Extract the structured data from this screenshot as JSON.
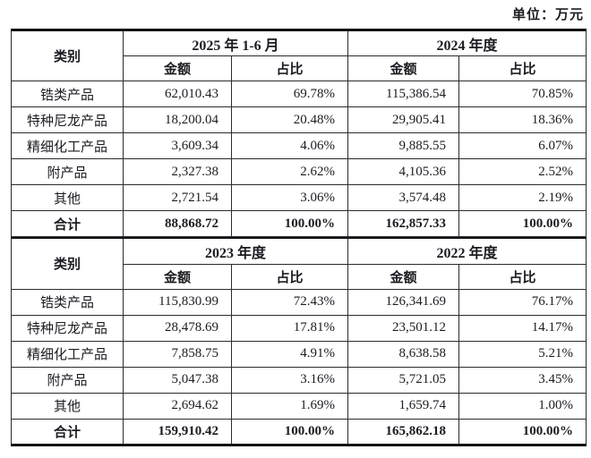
{
  "unit_label": "单位：万元",
  "colors": {
    "text": "#1b1b22",
    "border_thin": "#2b2b31",
    "border_thick": "#0c0c10",
    "background": "#ffffff"
  },
  "tables": [
    {
      "category_header": "类别",
      "period1": "2025 年 1-6 月",
      "period2": "2024 年度",
      "amount_header": "金额",
      "ratio_header": "占比",
      "rows": [
        {
          "category": "锆类产品",
          "amount1": "62,010.43",
          "ratio1": "69.78%",
          "amount2": "115,386.54",
          "ratio2": "70.85%"
        },
        {
          "category": "特种尼龙产品",
          "amount1": "18,200.04",
          "ratio1": "20.48%",
          "amount2": "29,905.41",
          "ratio2": "18.36%"
        },
        {
          "category": "精细化工产品",
          "amount1": "3,609.34",
          "ratio1": "4.06%",
          "amount2": "9,885.55",
          "ratio2": "6.07%"
        },
        {
          "category": "附产品",
          "amount1": "2,327.38",
          "ratio1": "2.62%",
          "amount2": "4,105.36",
          "ratio2": "2.52%"
        },
        {
          "category": "其他",
          "amount1": "2,721.54",
          "ratio1": "3.06%",
          "amount2": "3,574.48",
          "ratio2": "2.19%"
        }
      ],
      "total": {
        "category": "合计",
        "amount1": "88,868.72",
        "ratio1": "100.00%",
        "amount2": "162,857.33",
        "ratio2": "100.00%"
      }
    },
    {
      "category_header": "类别",
      "period1": "2023 年度",
      "period2": "2022 年度",
      "amount_header": "金额",
      "ratio_header": "占比",
      "rows": [
        {
          "category": "锆类产品",
          "amount1": "115,830.99",
          "ratio1": "72.43%",
          "amount2": "126,341.69",
          "ratio2": "76.17%"
        },
        {
          "category": "特种尼龙产品",
          "amount1": "28,478.69",
          "ratio1": "17.81%",
          "amount2": "23,501.12",
          "ratio2": "14.17%"
        },
        {
          "category": "精细化工产品",
          "amount1": "7,858.75",
          "ratio1": "4.91%",
          "amount2": "8,638.58",
          "ratio2": "5.21%"
        },
        {
          "category": "附产品",
          "amount1": "5,047.38",
          "ratio1": "3.16%",
          "amount2": "5,721.05",
          "ratio2": "3.45%"
        },
        {
          "category": "其他",
          "amount1": "2,694.62",
          "ratio1": "1.69%",
          "amount2": "1,659.74",
          "ratio2": "1.00%"
        }
      ],
      "total": {
        "category": "合计",
        "amount1": "159,910.42",
        "ratio1": "100.00%",
        "amount2": "165,862.18",
        "ratio2": "100.00%"
      }
    }
  ]
}
